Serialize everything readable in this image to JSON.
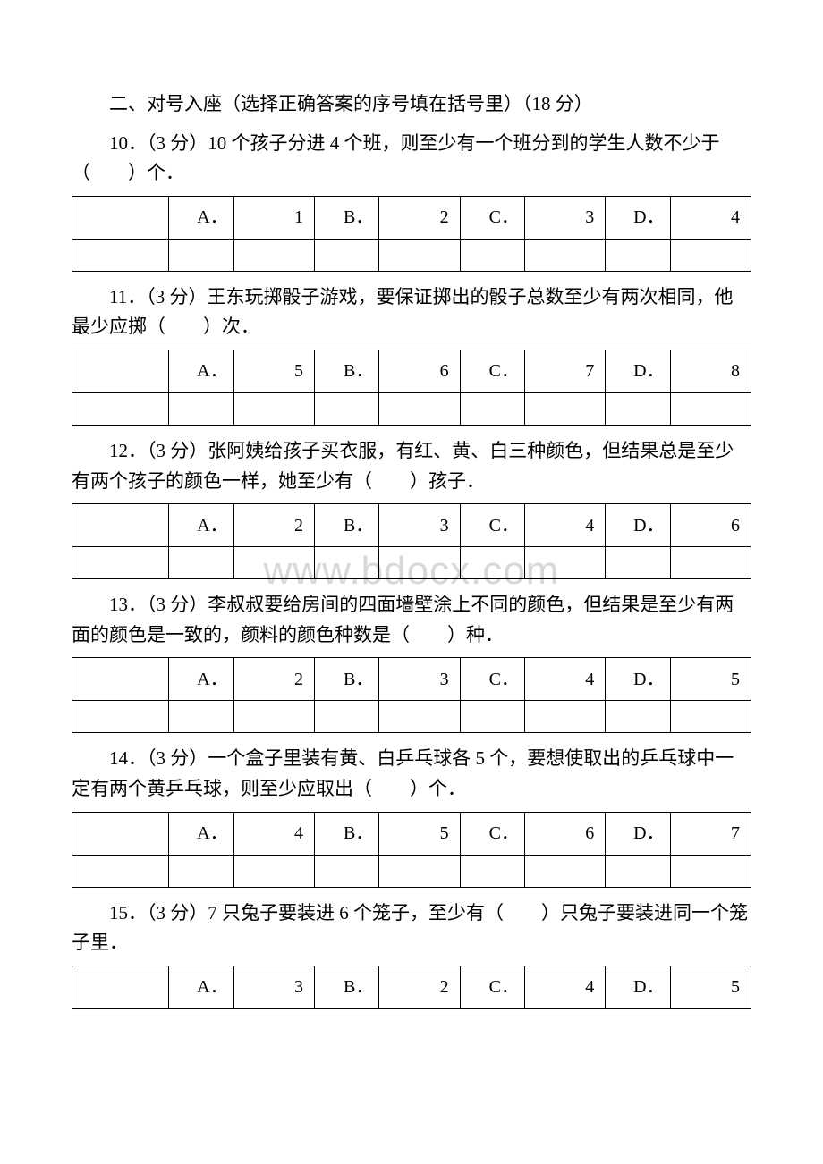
{
  "watermark": "www.bdocx.com",
  "section_title": "二、对号入座（选择正确答案的序号填在括号里）（18 分）",
  "questions": [
    {
      "text": "10．（3 分）10 个孩子分进 4 个班，则至少有一个班分到的学生人数不少于（　　）个．",
      "options": {
        "A": "1",
        "B": "2",
        "C": "3",
        "D": "4"
      },
      "has_empty_row": true
    },
    {
      "text": "11．（3 分）王东玩掷骰子游戏，要保证掷出的骰子总数至少有两次相同，他最少应掷（　　）次．",
      "options": {
        "A": "5",
        "B": "6",
        "C": "7",
        "D": "8"
      },
      "has_empty_row": true
    },
    {
      "text": "12．（3 分）张阿姨给孩子买衣服，有红、黄、白三种颜色，但结果总是至少有两个孩子的颜色一样，她至少有（　　）孩子．",
      "options": {
        "A": "2",
        "B": "3",
        "C": "4",
        "D": "6"
      },
      "has_empty_row": true
    },
    {
      "text": "13．（3 分）李叔叔要给房间的四面墙壁涂上不同的颜色，但结果是至少有两面的颜色是一致的，颜料的颜色种数是（　　）种．",
      "options": {
        "A": "2",
        "B": "3",
        "C": "4",
        "D": "5"
      },
      "has_empty_row": true
    },
    {
      "text": "14．（3 分）一个盒子里装有黄、白乒乓球各 5 个，要想使取出的乒乓球中一定有两个黄乒乓球，则至少应取出（　　）个．",
      "options": {
        "A": "4",
        "B": "5",
        "C": "6",
        "D": "7"
      },
      "has_empty_row": true
    },
    {
      "text": "15．（3 分）7 只兔子要装进 6 个笼子，至少有（　　）只兔子要装进同一个笼子里．",
      "options": {
        "A": "3",
        "B": "2",
        "C": "4",
        "D": "5"
      },
      "has_empty_row": false
    }
  ]
}
